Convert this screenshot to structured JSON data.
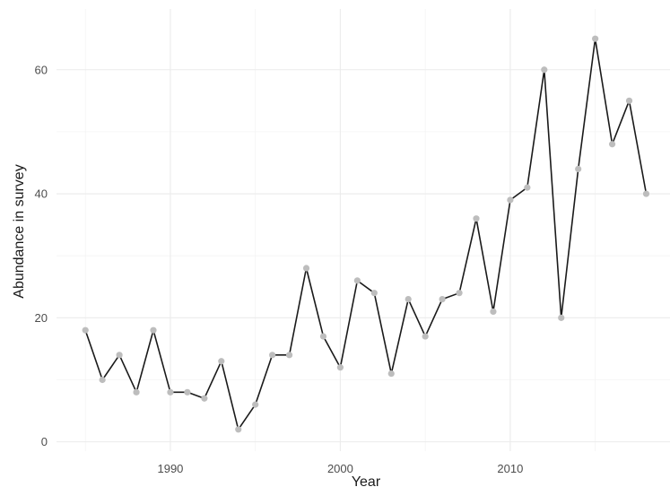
{
  "chart_data": {
    "type": "line",
    "title": "",
    "xlabel": "Year",
    "ylabel": "Abundance in survey",
    "xlim": [
      1983.3,
      2019.4
    ],
    "ylim": [
      -1.5,
      69.8
    ],
    "x_ticks": [
      1990,
      2000,
      2010
    ],
    "x_tick_labels": [
      "1990",
      "2000",
      "2010"
    ],
    "x_minor_ticks": [
      1985,
      1995,
      2005,
      2015
    ],
    "y_ticks": [
      0,
      20,
      40,
      60
    ],
    "y_tick_labels": [
      "0",
      "20",
      "40",
      "60"
    ],
    "y_minor_ticks": [
      10,
      30,
      50
    ],
    "grid": true,
    "legend": "none",
    "line_color": "#1a1a1a",
    "point_color": "#bdbdbd",
    "series": [
      {
        "x": [
          1985,
          1986,
          1987,
          1988,
          1989,
          1990,
          1991,
          1992,
          1993,
          1994,
          1995,
          1996,
          1997,
          1998,
          1999,
          2000,
          2001,
          2002,
          2003,
          2004,
          2005,
          2006,
          2007,
          2008,
          2009,
          2010,
          2011,
          2012,
          2013,
          2014,
          2015,
          2016,
          2017,
          2018
        ],
        "y": [
          18,
          10,
          14,
          8,
          18,
          8,
          8,
          7,
          13,
          2,
          6,
          14,
          14,
          28,
          17,
          12,
          26,
          24,
          11,
          23,
          17,
          23,
          24,
          36,
          21,
          39,
          41,
          60,
          20,
          44,
          65,
          48,
          55,
          40
        ]
      }
    ]
  }
}
